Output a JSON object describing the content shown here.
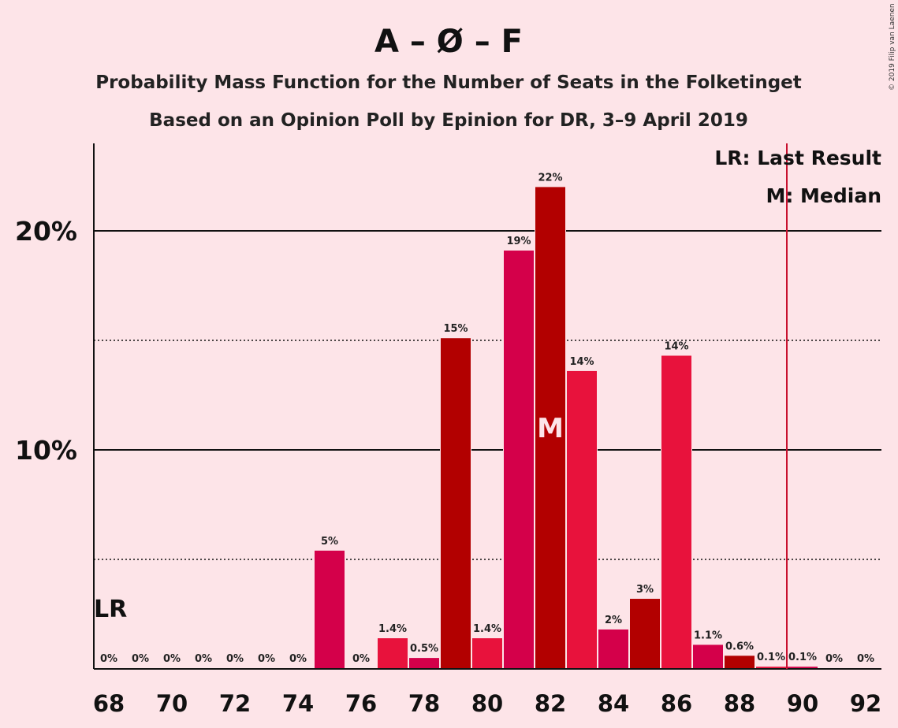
{
  "header": {
    "title": "A – Ø – F",
    "subtitle1": "Probability Mass Function for the Number of Seats in the Folketinget",
    "subtitle2": "Based on an Opinion Poll by Epinion for DR, 3–9 April 2019",
    "credit": "© 2019 Filip van Laenen"
  },
  "legend": {
    "lr": "LR: Last Result",
    "median": "M: Median"
  },
  "chart_data": {
    "type": "bar",
    "seats": [
      68,
      69,
      70,
      71,
      72,
      73,
      74,
      75,
      76,
      77,
      78,
      79,
      80,
      81,
      82,
      83,
      84,
      85,
      86,
      87,
      88,
      89,
      90,
      91,
      92
    ],
    "values": [
      0,
      0,
      0,
      0,
      0,
      0,
      0,
      5.4,
      0,
      1.4,
      0.5,
      15.1,
      1.4,
      19.1,
      22.0,
      13.6,
      1.8,
      3.2,
      14.3,
      1.1,
      0.6,
      0.1,
      0.1,
      0,
      0
    ],
    "data_labels": [
      "0%",
      "0%",
      "0%",
      "0%",
      "0%",
      "0%",
      "0%",
      "5%",
      "0%",
      "1.4%",
      "0.5%",
      "15%",
      "1.4%",
      "19%",
      "22%",
      "14%",
      "2%",
      "3%",
      "14%",
      "1.1%",
      "0.6%",
      "0.1%",
      "0.1%",
      "0%",
      "0%"
    ],
    "x_tick_labels": [
      "68",
      "70",
      "72",
      "74",
      "76",
      "78",
      "80",
      "82",
      "84",
      "86",
      "88",
      "90",
      "92"
    ],
    "y_tick_labels": [
      "10%",
      "20%"
    ],
    "ylim": [
      0,
      24
    ],
    "solid_gridlines": [
      10,
      20
    ],
    "dotted_gridlines": [
      5,
      15
    ],
    "last_result_seat": 68,
    "last_result_label": "LR",
    "majority_line_seat": 89.5,
    "median_seat": 82,
    "median_label": "M",
    "colors": [
      "#e8123c",
      "#d4004a",
      "#b20000"
    ],
    "majority_line_color": "#c8102e"
  }
}
